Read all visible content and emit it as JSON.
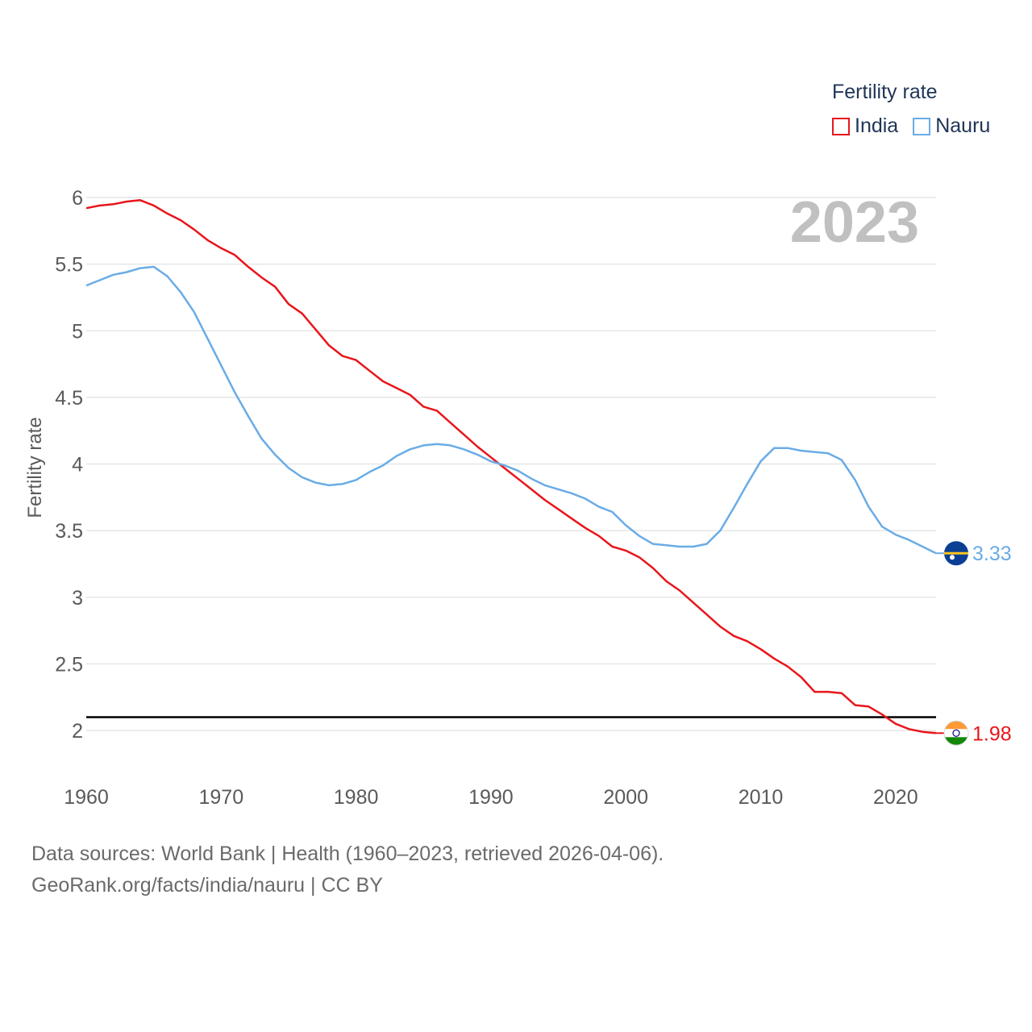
{
  "legend": {
    "title": "Fertility rate",
    "items": [
      {
        "label": "India",
        "color": "#e8161b"
      },
      {
        "label": "Nauru",
        "color": "#6aace6"
      }
    ]
  },
  "footer": {
    "line1": "Data sources: World Bank | Health (1960–2023, retrieved 2026-04-06).",
    "line2": "GeoRank.org/facts/india/nauru | CC BY"
  },
  "chart_data": {
    "type": "line",
    "year_label": "2023",
    "ylabel": "Fertility rate",
    "xlabel": "",
    "xlim": [
      1960,
      2023
    ],
    "ylim": [
      1.7,
      6.1
    ],
    "xticks": [
      "1960",
      "1970",
      "1980",
      "1990",
      "2000",
      "2010",
      "2020"
    ],
    "yticks": [
      "2",
      "2.5",
      "3",
      "3.5",
      "4",
      "4.5",
      "5",
      "5.5",
      "6"
    ],
    "reference_line": 2.1,
    "x": [
      1960,
      1961,
      1962,
      1963,
      1964,
      1965,
      1966,
      1967,
      1968,
      1969,
      1970,
      1971,
      1972,
      1973,
      1974,
      1975,
      1976,
      1977,
      1978,
      1979,
      1980,
      1981,
      1982,
      1983,
      1984,
      1985,
      1986,
      1987,
      1988,
      1989,
      1990,
      1991,
      1992,
      1993,
      1994,
      1995,
      1996,
      1997,
      1998,
      1999,
      2000,
      2001,
      2002,
      2003,
      2004,
      2005,
      2006,
      2007,
      2008,
      2009,
      2010,
      2011,
      2012,
      2013,
      2014,
      2015,
      2016,
      2017,
      2018,
      2019,
      2020,
      2021,
      2022,
      2023
    ],
    "series": [
      {
        "name": "India",
        "color": "#e8161b",
        "end_label": "1.98",
        "values": [
          5.92,
          5.94,
          5.95,
          5.97,
          5.98,
          5.94,
          5.88,
          5.83,
          5.76,
          5.68,
          5.62,
          5.57,
          5.48,
          5.4,
          5.33,
          5.2,
          5.13,
          5.01,
          4.89,
          4.81,
          4.78,
          4.7,
          4.62,
          4.57,
          4.52,
          4.43,
          4.4,
          4.31,
          4.22,
          4.13,
          4.05,
          3.97,
          3.89,
          3.81,
          3.73,
          3.66,
          3.59,
          3.52,
          3.46,
          3.38,
          3.35,
          3.3,
          3.22,
          3.12,
          3.05,
          2.96,
          2.87,
          2.78,
          2.71,
          2.67,
          2.61,
          2.54,
          2.48,
          2.4,
          2.29,
          2.29,
          2.28,
          2.19,
          2.18,
          2.12,
          2.05,
          2.01,
          1.99,
          1.98
        ]
      },
      {
        "name": "Nauru",
        "color": "#6aace6",
        "end_label": "3.33",
        "values": [
          5.34,
          5.38,
          5.42,
          5.44,
          5.47,
          5.48,
          5.41,
          5.29,
          5.14,
          4.94,
          4.74,
          4.54,
          4.36,
          4.19,
          4.07,
          3.97,
          3.9,
          3.86,
          3.84,
          3.85,
          3.88,
          3.94,
          3.99,
          4.06,
          4.11,
          4.14,
          4.15,
          4.14,
          4.11,
          4.07,
          4.02,
          3.99,
          3.95,
          3.89,
          3.84,
          3.81,
          3.78,
          3.74,
          3.68,
          3.64,
          3.54,
          3.46,
          3.4,
          3.39,
          3.38,
          3.38,
          3.4,
          3.5,
          3.67,
          3.85,
          4.02,
          4.12,
          4.12,
          4.1,
          4.09,
          4.08,
          4.03,
          3.88,
          3.68,
          3.53,
          3.47,
          3.43,
          3.38,
          3.33
        ]
      }
    ]
  }
}
